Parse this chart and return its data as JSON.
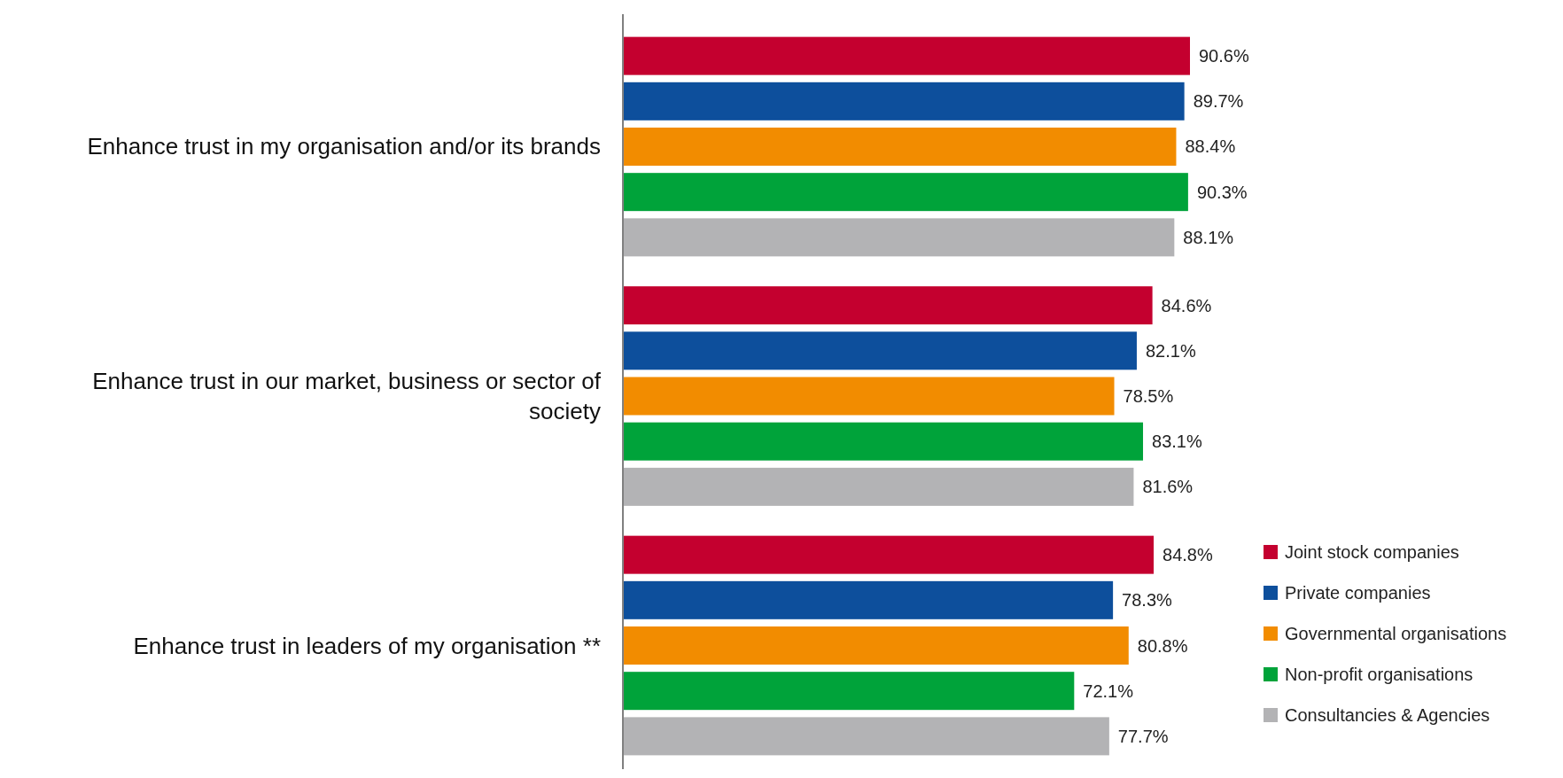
{
  "chart_data": {
    "type": "bar",
    "orientation": "horizontal",
    "categories": [
      "Enhance trust in my organisation and/or its brands",
      "Enhance trust in our market, business or sector of society",
      "Enhance trust in leaders of my organisation **"
    ],
    "tick_labels": "y",
    "legend": "bottom right",
    "series": [
      {
        "name": "Joint stock companies",
        "color": "#c4002f",
        "values": [
          90.6,
          84.6,
          84.8
        ],
        "value_labels": [
          "90.6%",
          "84.6%",
          "84.8%"
        ]
      },
      {
        "name": "Private companies",
        "color": "#0d4f9c",
        "values": [
          89.7,
          82.1,
          78.3
        ],
        "value_labels": [
          "89.7%",
          "82.1%",
          "78.3%"
        ]
      },
      {
        "name": "Governmental organisations",
        "color": "#f28c00",
        "values": [
          88.4,
          78.5,
          80.8
        ],
        "value_labels": [
          "88.4%",
          "78.5%",
          "80.8%"
        ]
      },
      {
        "name": "Non-profit organisations",
        "color": "#00a33a",
        "values": [
          90.3,
          83.1,
          72.1
        ],
        "value_labels": [
          "90.3%",
          "83.1%",
          "72.1%"
        ]
      },
      {
        "name": "Consultancies & Agencies",
        "color": "#b3b3b5",
        "values": [
          88.1,
          81.6,
          77.7
        ],
        "value_labels": [
          "88.1%",
          "81.6%",
          "77.7%"
        ]
      }
    ]
  }
}
